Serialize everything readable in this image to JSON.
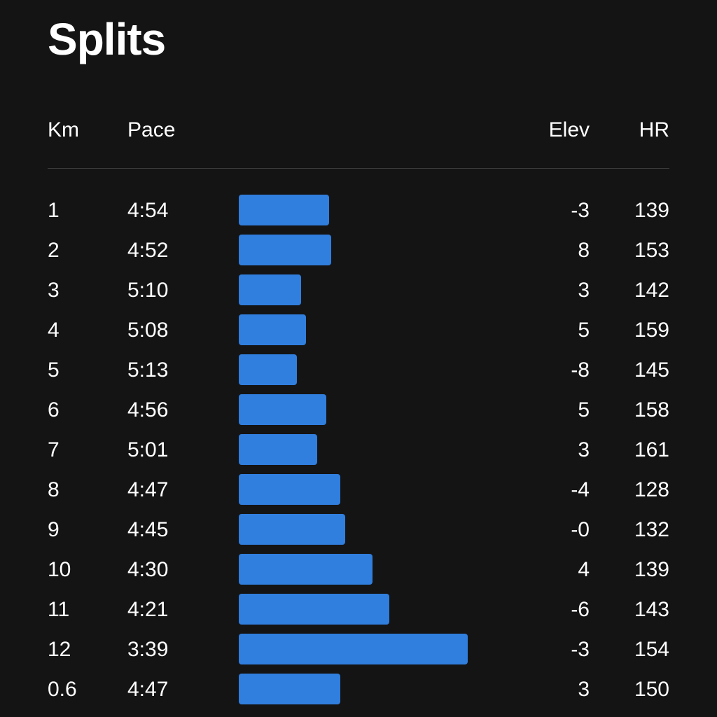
{
  "title": "Splits",
  "columns": {
    "km": "Km",
    "pace": "Pace",
    "elev": "Elev",
    "hr": "HR"
  },
  "accent_color": "#307EDE",
  "splits": [
    {
      "km": "1",
      "pace": "4:54",
      "pace_bar_fraction": 0.39,
      "elev": "-3",
      "hr": "139"
    },
    {
      "km": "2",
      "pace": "4:52",
      "pace_bar_fraction": 0.4,
      "elev": "8",
      "hr": "153"
    },
    {
      "km": "3",
      "pace": "5:10",
      "pace_bar_fraction": 0.27,
      "elev": "3",
      "hr": "142"
    },
    {
      "km": "4",
      "pace": "5:08",
      "pace_bar_fraction": 0.29,
      "elev": "5",
      "hr": "159"
    },
    {
      "km": "5",
      "pace": "5:13",
      "pace_bar_fraction": 0.25,
      "elev": "-8",
      "hr": "145"
    },
    {
      "km": "6",
      "pace": "4:56",
      "pace_bar_fraction": 0.38,
      "elev": "5",
      "hr": "158"
    },
    {
      "km": "7",
      "pace": "5:01",
      "pace_bar_fraction": 0.34,
      "elev": "3",
      "hr": "161"
    },
    {
      "km": "8",
      "pace": "4:47",
      "pace_bar_fraction": 0.44,
      "elev": "-4",
      "hr": "128"
    },
    {
      "km": "9",
      "pace": "4:45",
      "pace_bar_fraction": 0.46,
      "elev": "-0",
      "hr": "132"
    },
    {
      "km": "10",
      "pace": "4:30",
      "pace_bar_fraction": 0.58,
      "elev": "4",
      "hr": "139"
    },
    {
      "km": "11",
      "pace": "4:21",
      "pace_bar_fraction": 0.65,
      "elev": "-6",
      "hr": "143"
    },
    {
      "km": "12",
      "pace": "3:39",
      "pace_bar_fraction": 0.99,
      "elev": "-3",
      "hr": "154"
    },
    {
      "km": "0.6",
      "pace": "4:47",
      "pace_bar_fraction": 0.44,
      "elev": "3",
      "hr": "150"
    }
  ]
}
